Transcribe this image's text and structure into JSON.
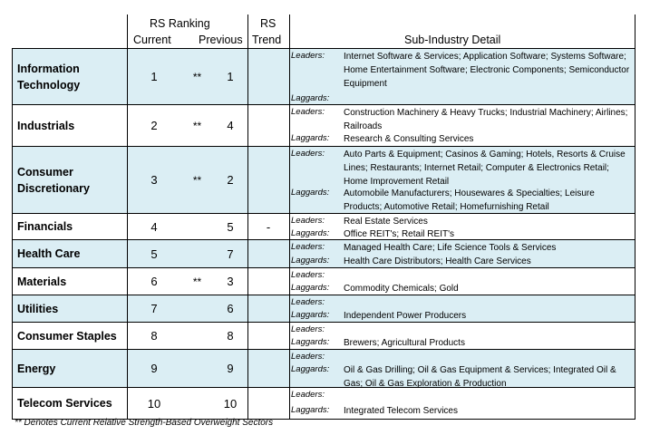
{
  "header": {
    "rs_ranking": "RS Ranking",
    "current": "Current",
    "previous": "Previous",
    "rs": "RS",
    "trend": "Trend",
    "sub_industry": "Sub-Industry Detail"
  },
  "labels": {
    "leaders": "Leaders:",
    "laggards": "Laggards:"
  },
  "rows": [
    {
      "sector": "Information Technology",
      "current": "1",
      "star": "**",
      "previous": "1",
      "trend": "",
      "leaders": "Internet Software & Services; Application Software; Systems Software; Home Entertainment Software; Electronic Components; Semiconductor Equipment",
      "laggards": ""
    },
    {
      "sector": "Industrials",
      "current": "2",
      "star": "**",
      "previous": "4",
      "trend": "",
      "leaders": "Construction Machinery & Heavy Trucks; Industrial Machinery; Airlines; Railroads",
      "laggards": "Research & Consulting Services"
    },
    {
      "sector": "Consumer Discretionary",
      "current": "3",
      "star": "**",
      "previous": "2",
      "trend": "",
      "leaders": "Auto Parts & Equipment; Casinos & Gaming; Hotels, Resorts & Cruise Lines; Restaurants; Internet Retail; Computer & Electronics Retail; Home Improvement Retail",
      "laggards": "Automobile Manufacturers; Housewares & Specialties; Leisure Products; Automotive Retail; Homefurnishing Retail"
    },
    {
      "sector": "Financials",
      "current": "4",
      "star": "",
      "previous": "5",
      "trend": "-",
      "leaders": "Real Estate Services",
      "laggards": "Office REIT's; Retail REIT's"
    },
    {
      "sector": "Health Care",
      "current": "5",
      "star": "",
      "previous": "7",
      "trend": "",
      "leaders": "Managed Health Care; Life Science Tools & Services",
      "laggards": "Health Care Distributors; Health Care Services"
    },
    {
      "sector": "Materials",
      "current": "6",
      "star": "**",
      "previous": "3",
      "trend": "",
      "leaders": "",
      "laggards": "Commodity Chemicals; Gold"
    },
    {
      "sector": "Utilities",
      "current": "7",
      "star": "",
      "previous": "6",
      "trend": "",
      "leaders": "",
      "laggards": "Independent Power Producers"
    },
    {
      "sector": "Consumer Staples",
      "current": "8",
      "star": "",
      "previous": "8",
      "trend": "",
      "leaders": "",
      "laggards": "Brewers; Agricultural Products"
    },
    {
      "sector": "Energy",
      "current": "9",
      "star": "",
      "previous": "9",
      "trend": "",
      "leaders": "",
      "laggards": "Oil & Gas Drilling; Oil & Gas Equipment & Services; Integrated Oil & Gas; Oil & Gas Exploration & Production"
    },
    {
      "sector": "Telecom Services",
      "current": "10",
      "star": "",
      "previous": "10",
      "trend": "",
      "leaders": "",
      "laggards": "Integrated Telecom Services"
    }
  ],
  "footnote": "** Denotes Current Relative Strength-Based Overweight Sectors",
  "colors": {
    "shaded_row": "#dbeef4",
    "border": "#000000"
  }
}
